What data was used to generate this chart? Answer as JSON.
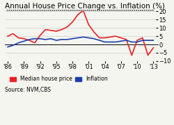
{
  "title": "Annual House Price Change vs. Inflation (%)",
  "years": [
    1986,
    1987,
    1988,
    1989,
    1990,
    1991,
    1992,
    1993,
    1994,
    1995,
    1996,
    1997,
    1998,
    1999,
    2000,
    2001,
    2002,
    2003,
    2004,
    2005,
    2006,
    2007,
    2008,
    2009,
    2010,
    2011,
    2012,
    2013
  ],
  "house_price": [
    5.0,
    6.5,
    4.0,
    3.5,
    2.5,
    1.0,
    5.5,
    9.0,
    8.5,
    8.0,
    9.0,
    10.5,
    13.5,
    18.0,
    20.5,
    12.0,
    7.5,
    4.0,
    4.0,
    4.5,
    5.0,
    4.0,
    3.0,
    -6.5,
    2.5,
    4.0,
    -6.5,
    -2.0
  ],
  "inflation": [
    -1.5,
    -0.5,
    1.0,
    2.0,
    3.0,
    3.5,
    3.5,
    3.0,
    3.5,
    2.5,
    3.0,
    3.0,
    3.5,
    4.0,
    4.5,
    4.0,
    3.5,
    2.5,
    1.5,
    1.5,
    1.5,
    2.0,
    2.5,
    1.5,
    1.5,
    2.5,
    2.5,
    2.5
  ],
  "house_color": "#e82222",
  "inflation_color": "#1a3faa",
  "background_color": "#f5f5f0",
  "ylim": [
    -10,
    20
  ],
  "yticks": [
    -10,
    -5,
    0,
    5,
    10,
    15,
    20
  ],
  "xtick_labels": [
    "'86",
    "'89",
    "'92",
    "'95",
    "'98",
    "'01",
    "'04",
    "'07",
    "'10",
    "'13"
  ],
  "xtick_years": [
    1986,
    1989,
    1992,
    1995,
    1998,
    2001,
    2004,
    2007,
    2010,
    2013
  ],
  "source_text": "Source: NVM,CBS",
  "legend_house": "Median house price",
  "legend_inflation": "Inflation",
  "title_fontsize": 7.5,
  "axis_fontsize": 6.0,
  "legend_fontsize": 5.5
}
